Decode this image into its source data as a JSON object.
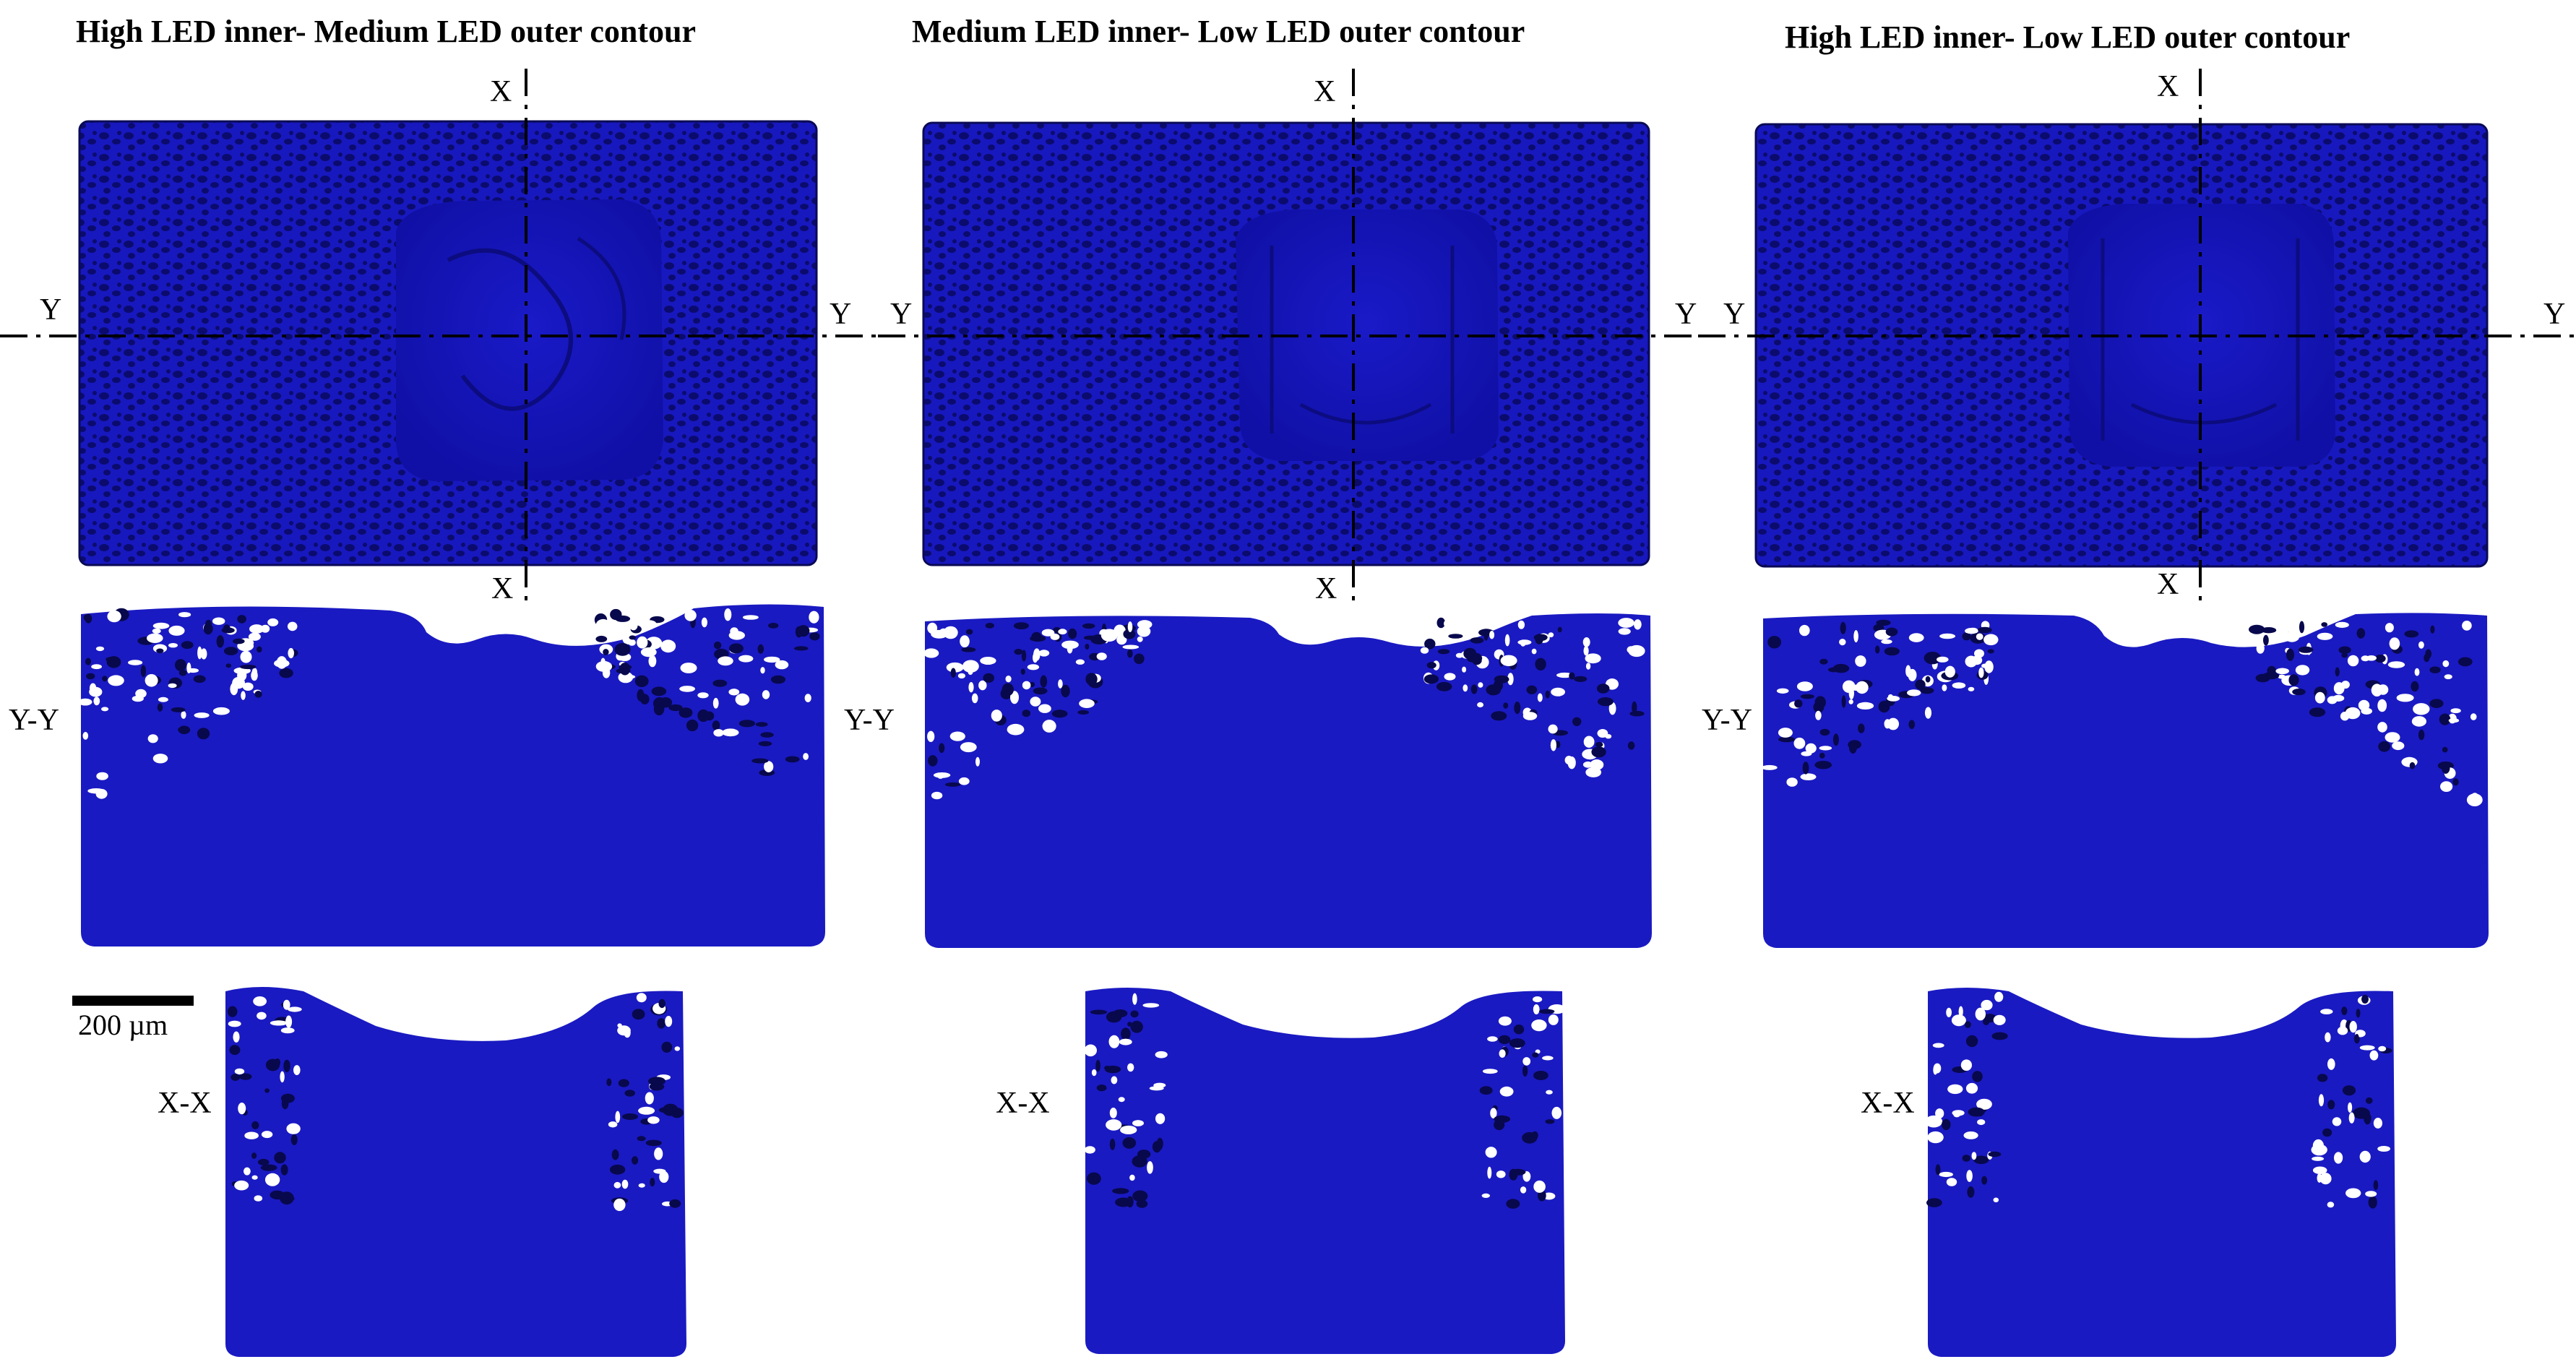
{
  "panels": [
    {
      "title": "High LED inner- Medium LED outer contour",
      "top_x_label": "X",
      "bottom_x_label": "X",
      "left_y_label": "Y",
      "right_y_label": "Y",
      "yy_label": "Y-Y",
      "xx_label": "X-X"
    },
    {
      "title": "Medium LED inner- Low LED outer contour",
      "top_x_label": "X",
      "bottom_x_label": "X",
      "left_y_label": "Y",
      "right_y_label": "Y",
      "yy_label": "Y-Y",
      "xx_label": "X-X"
    },
    {
      "title": "High LED inner- Low LED outer contour",
      "top_x_label": "X",
      "bottom_x_label": "X",
      "left_y_label": "Y",
      "right_y_label": "Y",
      "yy_label": "Y-Y",
      "xx_label": "X-X"
    }
  ],
  "scale_bar": {
    "label": "200 µm"
  },
  "colors": {
    "part": "#1515b8",
    "part_dark": "#0d0d8a",
    "pore": "#ffffff",
    "background": "#ffffff"
  }
}
